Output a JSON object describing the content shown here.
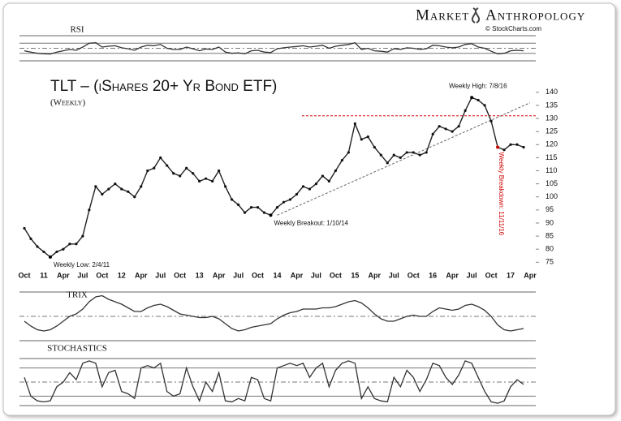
{
  "brand": {
    "left": "Market",
    "right": "Anthropology",
    "source": "© StockCharts.com"
  },
  "chart_data": [
    {
      "type": "line",
      "title": "TLT – (iShares 20+ Yr Bond ETF)",
      "subtitle": "(Weekly)",
      "color": "#222222",
      "categories": [
        "Oct",
        null,
        null,
        "11",
        null,
        null,
        "Apr",
        null,
        null,
        "Jul",
        null,
        null,
        "Oct",
        null,
        null,
        "12",
        null,
        null,
        "Apr",
        null,
        null,
        "Jul",
        null,
        null,
        "Oct",
        null,
        null,
        "13",
        null,
        null,
        "Apr",
        null,
        null,
        "Jul",
        null,
        null,
        "Oct",
        null,
        null,
        "14",
        null,
        null,
        "Apr",
        null,
        null,
        "Jul",
        null,
        null,
        "Oct",
        null,
        null,
        "15",
        null,
        null,
        "Apr",
        null,
        null,
        "Jul",
        null,
        null,
        "Oct",
        null,
        null,
        "16",
        null,
        null,
        "Apr",
        null,
        null,
        "Jul",
        null,
        null,
        "Oct",
        null,
        null,
        "17",
        null,
        null,
        "Apr"
      ],
      "values": [
        88,
        84,
        81,
        79,
        77,
        79,
        80,
        82,
        82,
        85,
        95,
        104,
        101,
        103,
        105,
        103,
        102,
        100,
        104,
        110,
        111,
        115,
        112,
        109,
        108,
        111,
        109,
        106,
        107,
        106,
        110,
        104,
        99,
        97,
        94,
        96,
        96,
        94,
        93,
        96,
        98,
        99,
        101,
        104,
        103,
        105,
        108,
        106,
        110,
        114,
        117,
        128,
        122,
        123,
        119,
        116,
        113,
        116,
        115,
        117,
        117,
        116,
        117,
        124,
        127,
        126,
        125,
        127,
        133,
        138,
        137,
        135,
        129,
        119,
        118,
        120,
        120,
        119,
        null
      ],
      "ylim": [
        72,
        148
      ],
      "yticks": [
        75,
        80,
        85,
        90,
        95,
        100,
        105,
        110,
        115,
        120,
        125,
        130,
        135,
        140
      ],
      "resistance": 131,
      "trendline": [
        {
          "point": 39,
          "value": 93
        },
        {
          "point": 78,
          "value": 136
        }
      ],
      "annotations": [
        {
          "text": "Weekly Low: 2/4/11",
          "point": 4
        },
        {
          "text": "Weekly Breakout: 1/10/14",
          "point": 38
        },
        {
          "text": "Weekly High: 7/8/16",
          "point": 69
        },
        {
          "text": "Weekly Breakdown: 11/11/16",
          "point": 73
        }
      ]
    },
    {
      "type": "line",
      "title": "RSI",
      "color": "#333333",
      "ylim": [
        0,
        100
      ],
      "levels": [
        30,
        50,
        70
      ],
      "values": [
        40,
        35,
        30,
        28,
        27,
        35,
        40,
        45,
        42,
        55,
        70,
        72,
        55,
        58,
        60,
        52,
        48,
        42,
        55,
        62,
        60,
        65,
        50,
        45,
        45,
        55,
        48,
        40,
        47,
        45,
        55,
        35,
        30,
        32,
        28,
        40,
        42,
        35,
        33,
        48,
        52,
        55,
        57,
        60,
        55,
        58,
        62,
        50,
        58,
        62,
        65,
        72,
        45,
        50,
        40,
        38,
        35,
        48,
        45,
        52,
        50,
        45,
        48,
        62,
        60,
        55,
        52,
        55,
        65,
        68,
        55,
        50,
        38,
        28,
        30,
        40,
        42,
        40,
        null
      ]
    },
    {
      "type": "line",
      "title": "TRIX",
      "color": "#333333",
      "ylim": [
        -1,
        1
      ],
      "levels": [
        0
      ],
      "values": [
        -0.2,
        -0.4,
        -0.55,
        -0.6,
        -0.55,
        -0.4,
        -0.2,
        0,
        0.1,
        0.3,
        0.6,
        0.8,
        0.85,
        0.7,
        0.6,
        0.5,
        0.35,
        0.2,
        0.2,
        0.35,
        0.45,
        0.5,
        0.4,
        0.25,
        0.1,
        0.05,
        0,
        -0.05,
        -0.05,
        0,
        -0.1,
        -0.3,
        -0.5,
        -0.6,
        -0.55,
        -0.45,
        -0.4,
        -0.35,
        -0.3,
        -0.1,
        0.05,
        0.15,
        0.2,
        0.3,
        0.3,
        0.3,
        0.35,
        0.35,
        0.4,
        0.5,
        0.6,
        0.65,
        0.55,
        0.35,
        0.1,
        -0.1,
        -0.2,
        -0.2,
        -0.1,
        0,
        0.05,
        0,
        0,
        0.2,
        0.35,
        0.3,
        0.25,
        0.3,
        0.45,
        0.5,
        0.4,
        0.25,
        0,
        -0.35,
        -0.55,
        -0.6,
        -0.55,
        -0.5,
        null
      ]
    },
    {
      "type": "line",
      "title": "STOCHASTICS",
      "color": "#333333",
      "ylim": [
        0,
        100
      ],
      "levels": [
        20,
        50,
        80
      ],
      "values": [
        60,
        20,
        10,
        8,
        10,
        40,
        50,
        70,
        55,
        90,
        95,
        90,
        40,
        70,
        75,
        30,
        25,
        15,
        80,
        85,
        80,
        90,
        30,
        20,
        25,
        80,
        40,
        10,
        50,
        30,
        70,
        10,
        8,
        15,
        10,
        60,
        55,
        15,
        10,
        80,
        85,
        90,
        85,
        90,
        60,
        80,
        90,
        40,
        75,
        90,
        95,
        90,
        15,
        40,
        15,
        10,
        8,
        60,
        40,
        75,
        60,
        30,
        55,
        90,
        85,
        60,
        45,
        65,
        95,
        90,
        60,
        30,
        8,
        5,
        10,
        40,
        55,
        45,
        null
      ]
    }
  ]
}
